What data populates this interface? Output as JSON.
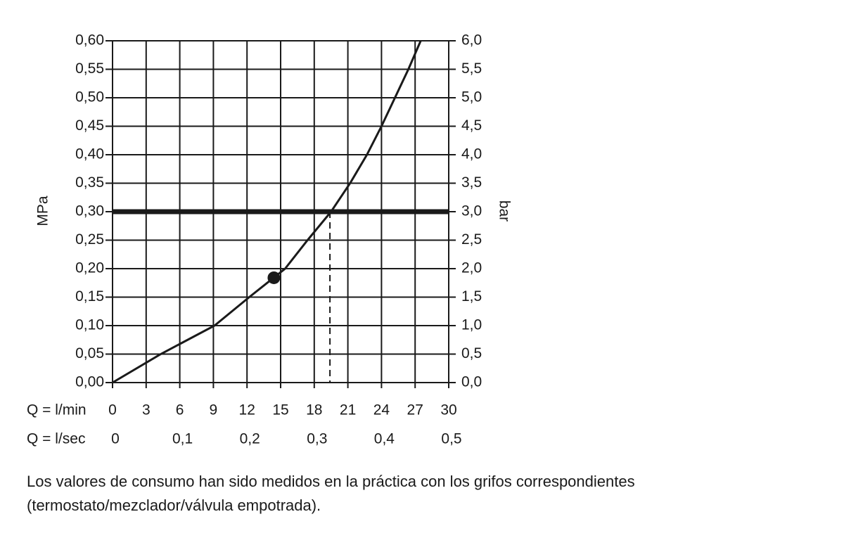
{
  "chart_data": {
    "type": "line",
    "x": [
      0,
      4.3,
      9.1,
      12.2,
      15.4,
      17.4,
      19.5,
      21.2,
      22.7,
      24.0,
      25.2,
      26.4,
      27.5
    ],
    "series": [
      {
        "values": [
          0,
          0.05,
          0.1,
          0.15,
          0.2,
          0.25,
          0.3,
          0.35,
          0.4,
          0.45,
          0.5,
          0.55,
          0.6
        ],
        "color": "#1a1a1a"
      }
    ],
    "xlim": [
      0,
      30
    ],
    "xticks": [
      0,
      3,
      6,
      9,
      12,
      15,
      18,
      21,
      24,
      27,
      30
    ],
    "xlabel": "Q = l/min",
    "x2lim": [
      0,
      0.5
    ],
    "x2ticks": [
      0,
      {
        "value": 0.1,
        "label": "0,1"
      },
      {
        "value": 0.2,
        "label": "0,2"
      },
      {
        "value": 0.3,
        "label": "0,3"
      },
      {
        "value": 0.4,
        "label": "0,4"
      },
      {
        "value": 0.5,
        "label": "0,5"
      }
    ],
    "x2label": "Q = l/sec",
    "ylim": [
      0,
      0.6
    ],
    "yticks": [
      {
        "value": 0,
        "label": "0,00"
      },
      {
        "value": 0.05,
        "label": "0,05"
      },
      {
        "value": 0.1,
        "label": "0,10"
      },
      {
        "value": 0.15,
        "label": "0,15"
      },
      {
        "value": 0.2,
        "label": "0,20"
      },
      {
        "value": 0.25,
        "label": "0,25"
      },
      {
        "value": 0.3,
        "label": "0,30"
      },
      {
        "value": 0.35,
        "label": "0,35"
      },
      {
        "value": 0.4,
        "label": "0,40"
      },
      {
        "value": 0.45,
        "label": "0,45"
      },
      {
        "value": 0.5,
        "label": "0,50"
      },
      {
        "value": 0.55,
        "label": "0,55"
      },
      {
        "value": 0.6,
        "label": "0,60"
      }
    ],
    "ylabel": "MPa",
    "y2lim": [
      0,
      6
    ],
    "y2ticks": [
      {
        "value": 0,
        "label": "0,0"
      },
      {
        "value": 0.5,
        "label": "0,5"
      },
      {
        "value": 1,
        "label": "1,0"
      },
      {
        "value": 1.5,
        "label": "1,5"
      },
      {
        "value": 2,
        "label": "2,0"
      },
      {
        "value": 2.5,
        "label": "2,5"
      },
      {
        "value": 3,
        "label": "3,0"
      },
      {
        "value": 3.5,
        "label": "3,5"
      },
      {
        "value": 4,
        "label": "4,0"
      },
      {
        "value": 4.5,
        "label": "4,5"
      },
      {
        "value": 5,
        "label": "5,0"
      },
      {
        "value": 5.5,
        "label": "5,5"
      },
      {
        "value": 6,
        "label": "6,0"
      }
    ],
    "y2label": "bar",
    "grid": true,
    "reference_line": {
      "y": 0.3
    },
    "marker": {
      "x": 14.4,
      "y": 0.184
    },
    "dashed_line": {
      "x": 19.4
    },
    "note": [
      "Los valores de consumo han sido medidos en la práctica con los grifos correspondientes",
      "(termostato/mezclador/válvula empotrada)."
    ]
  }
}
